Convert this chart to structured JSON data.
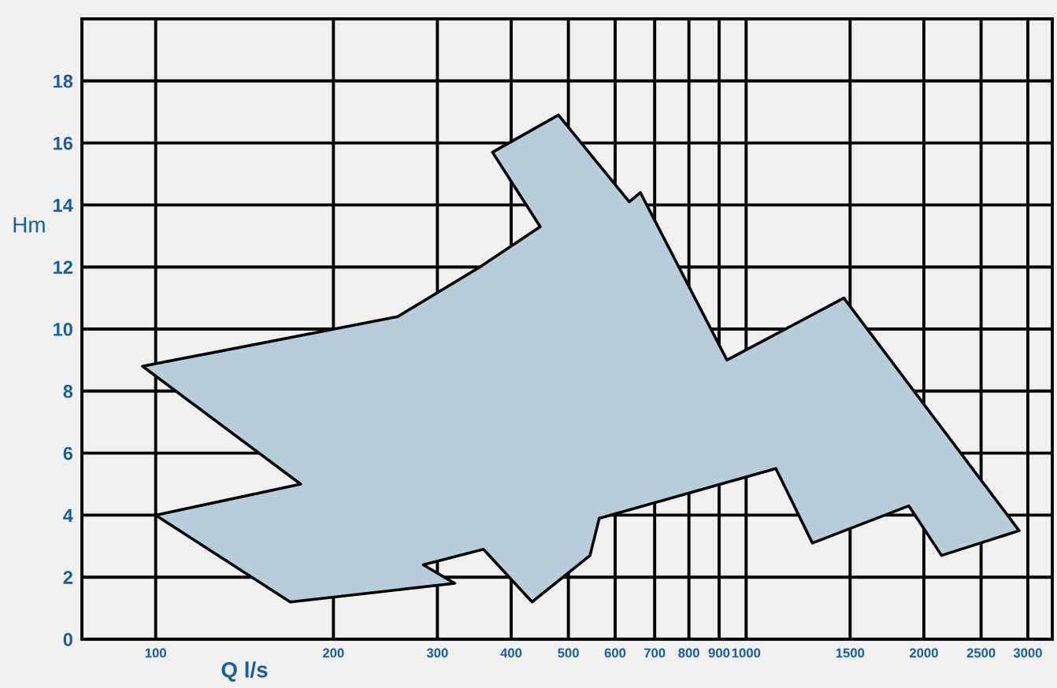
{
  "chart_data": {
    "type": "area",
    "xlabel": "Q l/s",
    "ylabel": "Hm",
    "x": [
      95,
      257,
      354,
      448,
      372,
      481,
      634,
      662,
      928,
      1464,
      2900,
      2143,
      1886,
      1295,
      1123,
      564,
      544,
      434,
      359,
      284,
      321,
      169,
      100,
      176
    ],
    "values": [
      8.8,
      10.4,
      12.0,
      13.3,
      15.7,
      16.9,
      14.1,
      14.4,
      9.0,
      11.0,
      3.5,
      2.7,
      4.3,
      3.1,
      5.5,
      3.9,
      2.7,
      1.2,
      2.9,
      2.4,
      1.8,
      1.2,
      4.0,
      5.0
    ],
    "color": "#b8ccd9",
    "log": "x",
    "xlim": [
      75,
      3300
    ],
    "xticks": [
      100,
      200,
      300,
      400,
      500,
      600,
      700,
      800,
      900,
      1000,
      1500,
      2000,
      2500,
      3000
    ],
    "ylim": [
      0,
      20
    ],
    "yticks": [
      0,
      2,
      4,
      6,
      8,
      10,
      12,
      14,
      16,
      18
    ],
    "grid": true
  }
}
